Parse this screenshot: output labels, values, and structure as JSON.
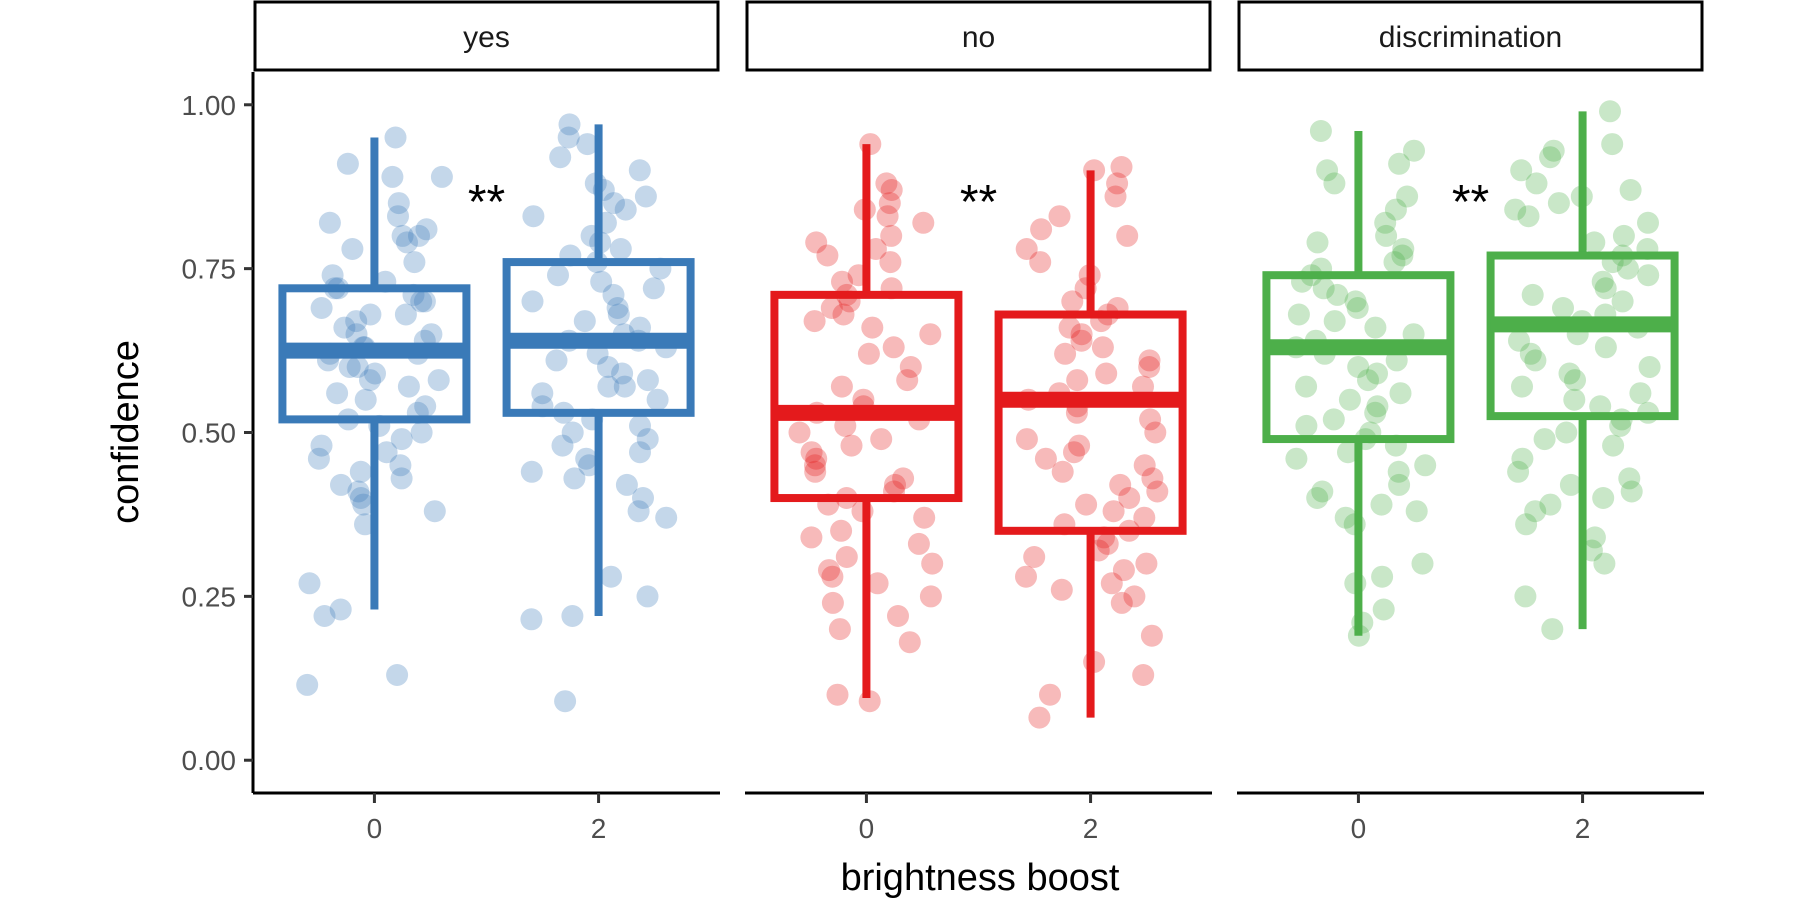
{
  "chart_data": {
    "type": "box",
    "xlabel": "brightness boost",
    "ylabel": "confidence",
    "ylim": [
      -0.05,
      1.05
    ],
    "y_ticks": [
      "0.00",
      "0.25",
      "0.50",
      "0.75",
      "1.00"
    ],
    "categories": [
      "0",
      "2"
    ],
    "facets": [
      {
        "label": "yes",
        "color": "#3a7ab8",
        "significance": "**",
        "boxes": [
          {
            "x": "0",
            "q1": 0.52,
            "median": 0.625,
            "q3": 0.72,
            "whisker_low": 0.23,
            "whisker_high": 0.95,
            "points": [
              0.95,
              0.91,
              0.89,
              0.89,
              0.85,
              0.83,
              0.82,
              0.81,
              0.8,
              0.8,
              0.79,
              0.78,
              0.76,
              0.74,
              0.73,
              0.72,
              0.72,
              0.71,
              0.7,
              0.7,
              0.69,
              0.68,
              0.68,
              0.67,
              0.66,
              0.65,
              0.65,
              0.64,
              0.63,
              0.63,
              0.62,
              0.62,
              0.61,
              0.6,
              0.6,
              0.59,
              0.58,
              0.58,
              0.57,
              0.56,
              0.55,
              0.54,
              0.53,
              0.52,
              0.51,
              0.5,
              0.49,
              0.48,
              0.47,
              0.46,
              0.45,
              0.44,
              0.43,
              0.42,
              0.41,
              0.4,
              0.39,
              0.38,
              0.36,
              0.27,
              0.23,
              0.22,
              0.13,
              0.115
            ]
          },
          {
            "x": "2",
            "q1": 0.53,
            "median": 0.64,
            "q3": 0.76,
            "whisker_low": 0.22,
            "whisker_high": 0.97,
            "points": [
              0.97,
              0.95,
              0.94,
              0.92,
              0.9,
              0.88,
              0.87,
              0.86,
              0.85,
              0.84,
              0.83,
              0.82,
              0.8,
              0.79,
              0.78,
              0.77,
              0.76,
              0.75,
              0.74,
              0.73,
              0.72,
              0.71,
              0.7,
              0.69,
              0.68,
              0.67,
              0.66,
              0.65,
              0.64,
              0.64,
              0.63,
              0.62,
              0.61,
              0.6,
              0.59,
              0.58,
              0.57,
              0.57,
              0.56,
              0.55,
              0.54,
              0.53,
              0.52,
              0.51,
              0.5,
              0.49,
              0.48,
              0.47,
              0.46,
              0.45,
              0.44,
              0.43,
              0.42,
              0.4,
              0.38,
              0.37,
              0.28,
              0.25,
              0.22,
              0.215,
              0.09
            ]
          }
        ]
      },
      {
        "label": "no",
        "color": "#e41a1c",
        "significance": "**",
        "boxes": [
          {
            "x": "0",
            "q1": 0.4,
            "median": 0.53,
            "q3": 0.71,
            "whisker_low": 0.095,
            "whisker_high": 0.94,
            "points": [
              0.94,
              0.88,
              0.87,
              0.85,
              0.84,
              0.83,
              0.82,
              0.8,
              0.79,
              0.78,
              0.77,
              0.76,
              0.74,
              0.73,
              0.72,
              0.71,
              0.7,
              0.69,
              0.68,
              0.67,
              0.66,
              0.65,
              0.63,
              0.62,
              0.6,
              0.58,
              0.57,
              0.55,
              0.54,
              0.53,
              0.52,
              0.51,
              0.5,
              0.49,
              0.48,
              0.47,
              0.46,
              0.45,
              0.44,
              0.43,
              0.42,
              0.41,
              0.4,
              0.39,
              0.38,
              0.37,
              0.35,
              0.34,
              0.33,
              0.31,
              0.3,
              0.29,
              0.28,
              0.27,
              0.25,
              0.24,
              0.22,
              0.2,
              0.18,
              0.1,
              0.09
            ]
          },
          {
            "x": "2",
            "q1": 0.35,
            "median": 0.55,
            "q3": 0.68,
            "whisker_low": 0.065,
            "whisker_high": 0.9,
            "points": [
              0.905,
              0.9,
              0.88,
              0.86,
              0.83,
              0.81,
              0.8,
              0.78,
              0.76,
              0.74,
              0.72,
              0.7,
              0.69,
              0.68,
              0.67,
              0.66,
              0.65,
              0.64,
              0.63,
              0.62,
              0.61,
              0.6,
              0.59,
              0.58,
              0.57,
              0.56,
              0.55,
              0.54,
              0.53,
              0.52,
              0.5,
              0.49,
              0.48,
              0.47,
              0.46,
              0.45,
              0.44,
              0.43,
              0.42,
              0.41,
              0.4,
              0.39,
              0.38,
              0.37,
              0.36,
              0.35,
              0.34,
              0.33,
              0.32,
              0.31,
              0.3,
              0.29,
              0.28,
              0.27,
              0.26,
              0.25,
              0.24,
              0.19,
              0.15,
              0.13,
              0.1,
              0.065
            ]
          }
        ]
      },
      {
        "label": "discrimination",
        "color": "#4daf4a",
        "significance": "**",
        "boxes": [
          {
            "x": "0",
            "q1": 0.49,
            "median": 0.63,
            "q3": 0.74,
            "whisker_low": 0.19,
            "whisker_high": 0.96,
            "points": [
              0.96,
              0.93,
              0.91,
              0.9,
              0.88,
              0.86,
              0.84,
              0.82,
              0.8,
              0.79,
              0.78,
              0.77,
              0.76,
              0.75,
              0.74,
              0.73,
              0.72,
              0.71,
              0.7,
              0.69,
              0.68,
              0.67,
              0.66,
              0.65,
              0.64,
              0.63,
              0.62,
              0.61,
              0.6,
              0.59,
              0.58,
              0.57,
              0.56,
              0.55,
              0.54,
              0.53,
              0.52,
              0.51,
              0.5,
              0.49,
              0.48,
              0.47,
              0.46,
              0.45,
              0.44,
              0.42,
              0.41,
              0.4,
              0.39,
              0.38,
              0.37,
              0.36,
              0.3,
              0.28,
              0.27,
              0.23,
              0.21,
              0.19
            ]
          },
          {
            "x": "2",
            "q1": 0.525,
            "median": 0.665,
            "q3": 0.77,
            "whisker_low": 0.2,
            "whisker_high": 0.99,
            "points": [
              0.99,
              0.94,
              0.93,
              0.92,
              0.9,
              0.88,
              0.87,
              0.86,
              0.85,
              0.84,
              0.83,
              0.82,
              0.8,
              0.79,
              0.78,
              0.77,
              0.76,
              0.75,
              0.74,
              0.73,
              0.72,
              0.71,
              0.7,
              0.69,
              0.68,
              0.67,
              0.66,
              0.65,
              0.64,
              0.63,
              0.62,
              0.61,
              0.6,
              0.59,
              0.58,
              0.57,
              0.56,
              0.55,
              0.54,
              0.53,
              0.52,
              0.51,
              0.5,
              0.49,
              0.48,
              0.46,
              0.44,
              0.43,
              0.42,
              0.41,
              0.4,
              0.39,
              0.38,
              0.36,
              0.34,
              0.32,
              0.3,
              0.25,
              0.2
            ]
          }
        ]
      }
    ]
  }
}
